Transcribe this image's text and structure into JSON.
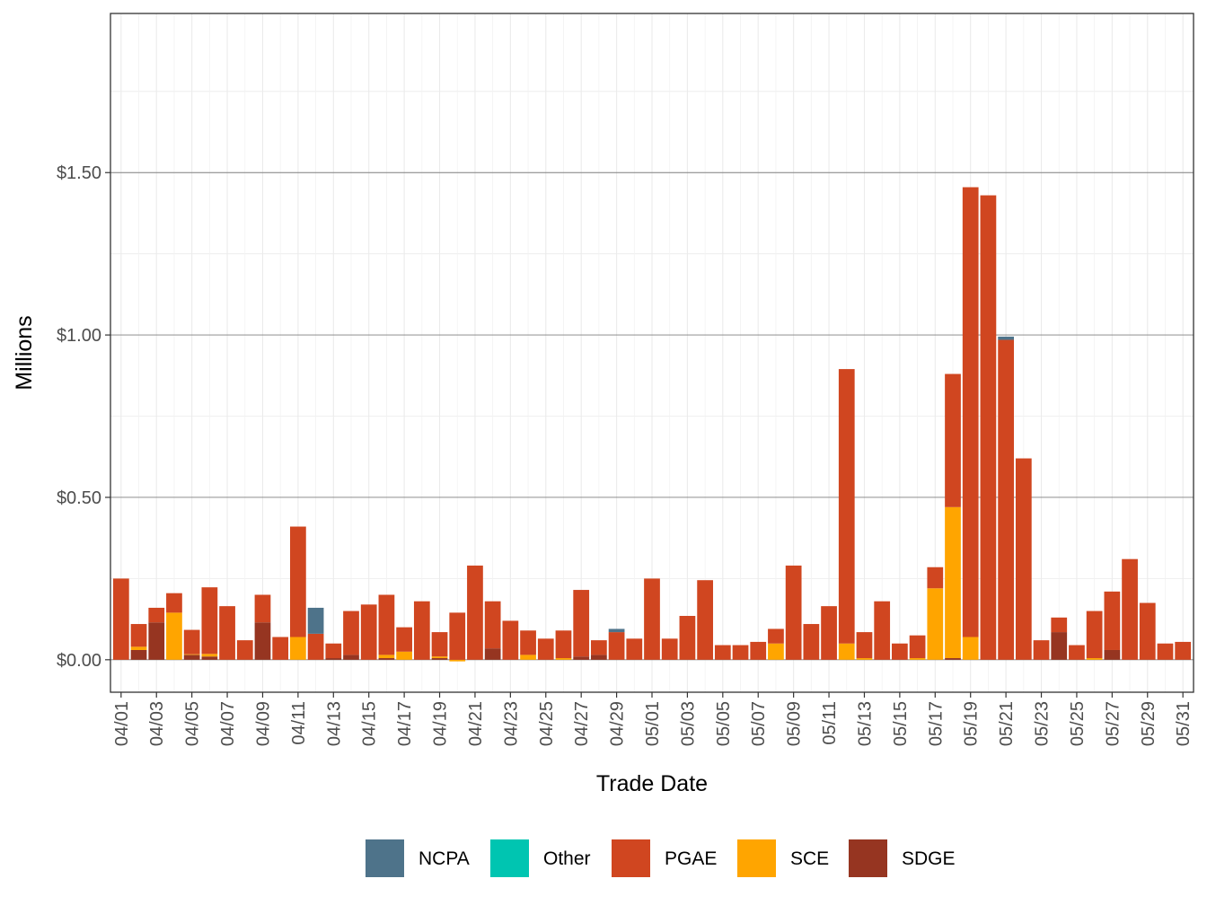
{
  "chart_data": {
    "type": "bar",
    "stacked": true,
    "title": "",
    "xlabel": "Trade Date",
    "ylabel": "Millions",
    "ylim": [
      -0.1,
      1.99
    ],
    "y_ticks": [
      0,
      0.5,
      1.0,
      1.5
    ],
    "y_tick_labels": [
      "$0.00",
      "$0.50",
      "$1.00",
      "$1.50"
    ],
    "grid": true,
    "legend_position": "bottom",
    "colors": {
      "NCPA": "#4e738a",
      "Other": "#00c5b1",
      "PGAE": "#d04620",
      "SCE": "#ffa500",
      "SDGE": "#963521"
    },
    "categories": [
      "04/01",
      "04/02",
      "04/03",
      "04/04",
      "04/05",
      "04/06",
      "04/07",
      "04/08",
      "04/09",
      "04/10",
      "04/11",
      "04/12",
      "04/13",
      "04/14",
      "04/15",
      "04/16",
      "04/17",
      "04/18",
      "04/19",
      "04/20",
      "04/21",
      "04/22",
      "04/23",
      "04/24",
      "04/25",
      "04/26",
      "04/27",
      "04/28",
      "04/29",
      "04/30",
      "05/01",
      "05/02",
      "05/03",
      "05/04",
      "05/05",
      "05/06",
      "05/07",
      "05/08",
      "05/09",
      "05/10",
      "05/11",
      "05/12",
      "05/13",
      "05/14",
      "05/15",
      "05/16",
      "05/17",
      "05/18",
      "05/19",
      "05/20",
      "05/21",
      "05/22",
      "05/23",
      "05/24",
      "05/25",
      "05/26",
      "05/27",
      "05/28",
      "05/29",
      "05/30",
      "05/31"
    ],
    "tick_labels": [
      "04/01",
      "04/03",
      "04/05",
      "04/07",
      "04/09",
      "04/11",
      "04/13",
      "04/15",
      "04/17",
      "04/19",
      "04/21",
      "04/23",
      "04/25",
      "04/27",
      "04/29",
      "05/01",
      "05/03",
      "05/05",
      "05/07",
      "05/09",
      "05/11",
      "05/13",
      "05/15",
      "05/17",
      "05/19",
      "05/21",
      "05/23",
      "05/25",
      "05/27",
      "05/29",
      "05/31"
    ],
    "series": [
      {
        "name": "SDGE",
        "values": [
          0,
          0.03,
          0.115,
          0,
          0.015,
          0.01,
          0,
          0,
          0.115,
          0,
          0,
          0,
          0.005,
          0.015,
          0,
          0.005,
          0,
          0,
          0.005,
          0,
          0,
          0.035,
          0,
          0,
          0,
          0,
          0.01,
          0.015,
          0,
          0,
          0,
          0,
          0,
          0,
          0,
          0,
          0,
          0,
          0,
          0,
          0,
          0,
          0,
          0,
          0,
          0,
          0,
          0.005,
          0,
          0,
          0,
          0,
          0,
          0.085,
          0,
          0,
          0.03,
          0,
          0,
          0,
          0
        ]
      },
      {
        "name": "SCE",
        "values": [
          0,
          0.01,
          0,
          0.145,
          0.002,
          0.008,
          0,
          0,
          0,
          0,
          0.07,
          0,
          0,
          0,
          0,
          0.01,
          0.025,
          0,
          0.005,
          -0.005,
          0,
          0,
          0,
          0.015,
          0,
          0.005,
          0,
          0,
          0,
          0,
          0,
          0,
          0,
          0,
          0,
          0,
          0,
          0.05,
          0,
          0,
          0,
          0.05,
          0.005,
          0,
          0,
          0.005,
          0.22,
          0.465,
          0.07,
          0,
          0,
          0,
          0,
          0,
          0,
          0.005,
          0,
          0,
          0,
          0,
          0
        ]
      },
      {
        "name": "PGAE",
        "values": [
          0.25,
          0.07,
          0.045,
          0.06,
          0.075,
          0.205,
          0.165,
          0.06,
          0.085,
          0.07,
          0.34,
          0.08,
          0.045,
          0.135,
          0.17,
          0.185,
          0.075,
          0.18,
          0.075,
          0.145,
          0.29,
          0.145,
          0.12,
          0.075,
          0.065,
          0.085,
          0.205,
          0.045,
          0.085,
          0.065,
          0.25,
          0.065,
          0.135,
          0.245,
          0.045,
          0.045,
          0.055,
          0.045,
          0.29,
          0.11,
          0.165,
          0.845,
          0.08,
          0.18,
          0.05,
          0.07,
          0.065,
          0.41,
          1.385,
          1.43,
          0.985,
          0.62,
          0.06,
          0.045,
          0.045,
          0.145,
          0.18,
          0.31,
          0.175,
          0.05,
          0.055
        ]
      },
      {
        "name": "NCPA",
        "values": [
          0,
          0,
          0,
          0,
          0,
          0,
          0,
          0,
          0,
          0,
          0,
          0.08,
          0,
          0,
          0,
          0,
          0,
          0,
          0,
          0,
          0,
          0,
          0,
          0,
          0,
          0,
          0,
          0,
          0.01,
          0,
          0,
          0,
          0,
          0,
          0,
          0,
          0,
          0,
          0,
          0,
          0,
          0,
          0,
          0,
          0,
          0,
          0,
          0,
          0,
          0,
          0.01,
          0,
          0,
          0,
          0,
          0,
          0,
          0,
          0,
          0,
          0
        ]
      },
      {
        "name": "Other",
        "values": [
          0,
          0,
          0,
          0,
          0,
          0,
          0,
          0,
          0,
          0,
          0,
          0,
          0,
          0,
          0,
          0,
          0,
          0,
          0,
          0,
          0,
          0,
          0,
          0,
          0,
          0,
          0,
          0,
          0,
          0,
          0,
          0,
          0,
          0,
          0,
          0,
          0,
          0,
          0,
          0,
          0,
          0,
          0,
          0,
          0,
          0,
          0,
          0,
          0,
          0,
          0,
          0,
          0,
          0,
          0,
          0,
          0,
          0,
          0,
          0,
          0
        ]
      }
    ],
    "legend": [
      "NCPA",
      "Other",
      "PGAE",
      "SCE",
      "SDGE"
    ]
  }
}
